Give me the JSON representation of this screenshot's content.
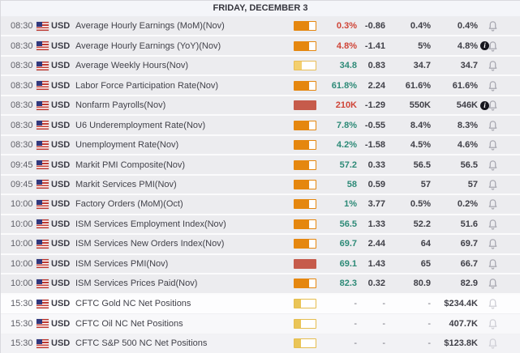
{
  "header": {
    "title": "FRIDAY, DECEMBER 3"
  },
  "colors": {
    "actual_red": "#cf4437",
    "actual_green": "#2d8a77",
    "value_dark": "#3f3f47",
    "pending_dash": "#70707a"
  },
  "impact_styles": {
    "orange": {
      "border": "#e5870f",
      "fill": "#e5870f",
      "pct": 68
    },
    "yellow": {
      "border": "#e9bd55",
      "fill": "#f3cf6f",
      "pct": 36
    },
    "red": {
      "border": "#c65b4b",
      "fill": "#c65b4b",
      "pct": 100
    },
    "cftc": {
      "border": "#e5bd4f",
      "fill": "#eac557",
      "pct": 30
    }
  },
  "rows": [
    {
      "time": "08:30",
      "currency": "USD",
      "event": "Average Hourly Earnings (MoM)(Nov)",
      "impact": "orange",
      "actual": "0.3%",
      "actual_color": "red",
      "dev": "-0.86",
      "consensus": "0.4%",
      "previous": "0.4%",
      "info": false,
      "pending": false
    },
    {
      "time": "08:30",
      "currency": "USD",
      "event": "Average Hourly Earnings (YoY)(Nov)",
      "impact": "orange",
      "actual": "4.8%",
      "actual_color": "red",
      "dev": "-1.41",
      "consensus": "5%",
      "previous": "4.8%",
      "info": true,
      "pending": false
    },
    {
      "time": "08:30",
      "currency": "USD",
      "event": "Average Weekly Hours(Nov)",
      "impact": "yellow",
      "actual": "34.8",
      "actual_color": "green",
      "dev": "0.83",
      "consensus": "34.7",
      "previous": "34.7",
      "info": false,
      "pending": false
    },
    {
      "time": "08:30",
      "currency": "USD",
      "event": "Labor Force Participation Rate(Nov)",
      "impact": "orange",
      "actual": "61.8%",
      "actual_color": "green",
      "dev": "2.24",
      "consensus": "61.6%",
      "previous": "61.6%",
      "info": false,
      "pending": false
    },
    {
      "time": "08:30",
      "currency": "USD",
      "event": "Nonfarm Payrolls(Nov)",
      "impact": "red",
      "actual": "210K",
      "actual_color": "red",
      "dev": "-1.29",
      "consensus": "550K",
      "previous": "546K",
      "info": true,
      "pending": false
    },
    {
      "time": "08:30",
      "currency": "USD",
      "event": "U6 Underemployment Rate(Nov)",
      "impact": "orange",
      "actual": "7.8%",
      "actual_color": "green",
      "dev": "-0.55",
      "consensus": "8.4%",
      "previous": "8.3%",
      "info": false,
      "pending": false
    },
    {
      "time": "08:30",
      "currency": "USD",
      "event": "Unemployment Rate(Nov)",
      "impact": "orange",
      "actual": "4.2%",
      "actual_color": "green",
      "dev": "-1.58",
      "consensus": "4.5%",
      "previous": "4.6%",
      "info": false,
      "pending": false
    },
    {
      "time": "09:45",
      "currency": "USD",
      "event": "Markit PMI Composite(Nov)",
      "impact": "orange",
      "actual": "57.2",
      "actual_color": "green",
      "dev": "0.33",
      "consensus": "56.5",
      "previous": "56.5",
      "info": false,
      "pending": false
    },
    {
      "time": "09:45",
      "currency": "USD",
      "event": "Markit Services PMI(Nov)",
      "impact": "orange",
      "actual": "58",
      "actual_color": "green",
      "dev": "0.59",
      "consensus": "57",
      "previous": "57",
      "info": false,
      "pending": false
    },
    {
      "time": "10:00",
      "currency": "USD",
      "event": "Factory Orders (MoM)(Oct)",
      "impact": "orange",
      "actual": "1%",
      "actual_color": "green",
      "dev": "3.77",
      "consensus": "0.5%",
      "previous": "0.2%",
      "info": false,
      "pending": false
    },
    {
      "time": "10:00",
      "currency": "USD",
      "event": "ISM Services Employment Index(Nov)",
      "impact": "orange",
      "actual": "56.5",
      "actual_color": "green",
      "dev": "1.33",
      "consensus": "52.2",
      "previous": "51.6",
      "info": false,
      "pending": false
    },
    {
      "time": "10:00",
      "currency": "USD",
      "event": "ISM Services New Orders Index(Nov)",
      "impact": "orange",
      "actual": "69.7",
      "actual_color": "green",
      "dev": "2.44",
      "consensus": "64",
      "previous": "69.7",
      "info": false,
      "pending": false
    },
    {
      "time": "10:00",
      "currency": "USD",
      "event": "ISM Services PMI(Nov)",
      "impact": "red",
      "actual": "69.1",
      "actual_color": "green",
      "dev": "1.43",
      "consensus": "65",
      "previous": "66.7",
      "info": false,
      "pending": false
    },
    {
      "time": "10:00",
      "currency": "USD",
      "event": "ISM Services Prices Paid(Nov)",
      "impact": "orange",
      "actual": "82.3",
      "actual_color": "green",
      "dev": "0.32",
      "consensus": "80.9",
      "previous": "82.9",
      "info": false,
      "pending": false
    },
    {
      "time": "15:30",
      "currency": "USD",
      "event": "CFTC Gold NC Net Positions",
      "impact": "cftc",
      "actual": "-",
      "actual_color": "dash",
      "dev": "-",
      "consensus": "-",
      "previous": "$234.4K",
      "info": false,
      "pending": true
    },
    {
      "time": "15:30",
      "currency": "USD",
      "event": "CFTC Oil NC Net Positions",
      "impact": "cftc",
      "actual": "-",
      "actual_color": "dash",
      "dev": "-",
      "consensus": "-",
      "previous": "407.7K",
      "info": false,
      "pending": true
    },
    {
      "time": "15:30",
      "currency": "USD",
      "event": "CFTC S&P 500 NC Net Positions",
      "impact": "cftc",
      "actual": "-",
      "actual_color": "dash",
      "dev": "-",
      "consensus": "-",
      "previous": "$123.8K",
      "info": false,
      "pending": true
    }
  ]
}
